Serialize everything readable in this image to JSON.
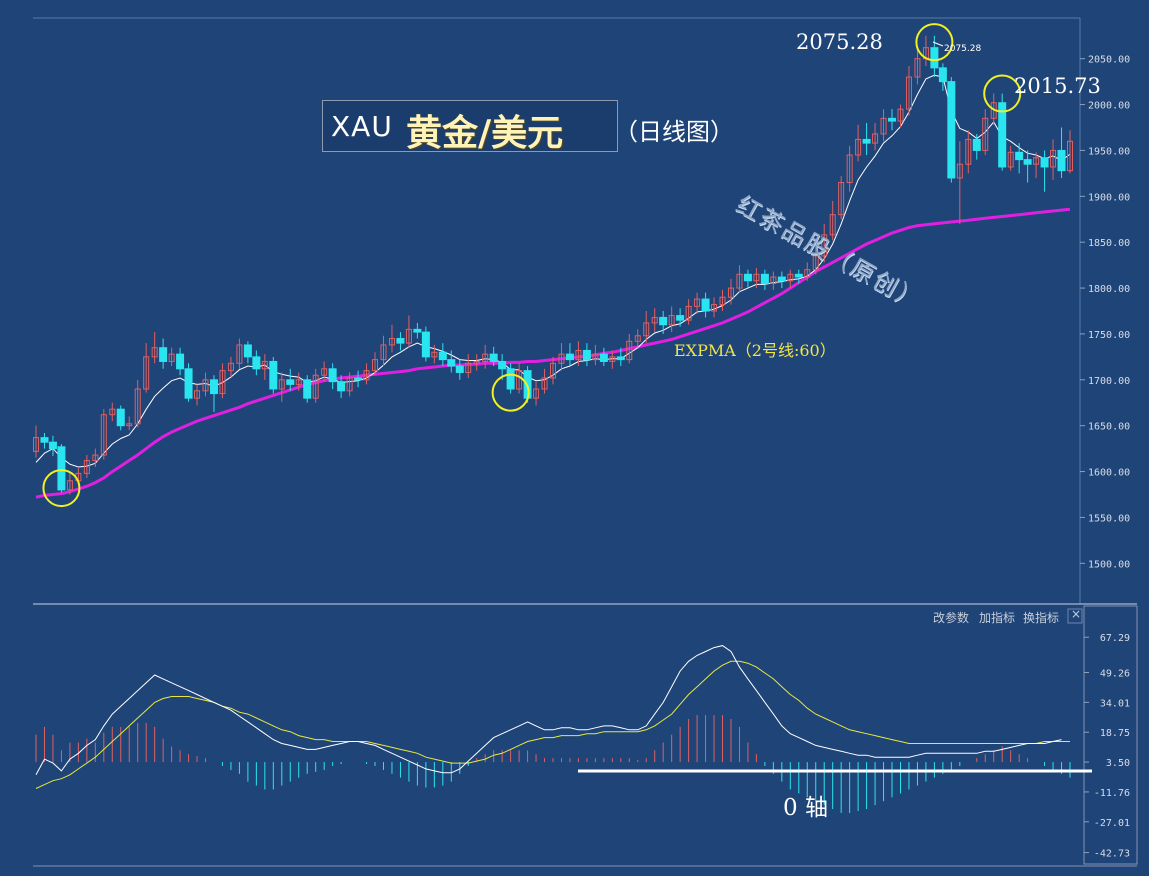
{
  "title": {
    "symbol": "XAU",
    "pair": "黄金/美元",
    "period": "（日线图）"
  },
  "watermark": "红茶品股（原创）",
  "expma_label": "EXPMA（2号线:60）",
  "zero_axis_label": "0 轴",
  "toolbar": {
    "modify_params": "改参数",
    "add_indicator": "加指标",
    "switch_indicator": "换指标",
    "close": "×"
  },
  "annotations": {
    "high_big": "2075.28",
    "high_small": "2075.28",
    "second_high": "2015.73"
  },
  "colors": {
    "background": "#1f4478",
    "up_candle": "#e06060",
    "down_candle": "#29e5f0",
    "expma60": "#e020e0",
    "short_ema": "#ffffff",
    "dea": "#e8e840",
    "circle": "#f2f020"
  },
  "chart_data": {
    "type": "candlestick",
    "y_ticks": [
      "2050.00",
      "2000.00",
      "1950.00",
      "1900.00",
      "1850.00",
      "1800.00",
      "1750.00",
      "1700.00",
      "1650.00",
      "1600.00",
      "1550.00",
      "1500.00"
    ],
    "ylim": [
      1460,
      2090
    ],
    "candles": [
      [
        1622,
        1637,
        1650,
        1615
      ],
      [
        1637,
        1632,
        1642,
        1625
      ],
      [
        1632,
        1625,
        1639,
        1617
      ],
      [
        1627,
        1580,
        1630,
        1577
      ],
      [
        1580,
        1590,
        1600,
        1575
      ],
      [
        1590,
        1598,
        1605,
        1585
      ],
      [
        1598,
        1612,
        1618,
        1593
      ],
      [
        1612,
        1618,
        1625,
        1605
      ],
      [
        1618,
        1662,
        1668,
        1613
      ],
      [
        1662,
        1668,
        1675,
        1655
      ],
      [
        1668,
        1650,
        1672,
        1645
      ],
      [
        1650,
        1652,
        1660,
        1645
      ],
      [
        1652,
        1690,
        1700,
        1648
      ],
      [
        1690,
        1725,
        1740,
        1686
      ],
      [
        1725,
        1735,
        1752,
        1718
      ],
      [
        1735,
        1720,
        1745,
        1712
      ],
      [
        1720,
        1728,
        1735,
        1715
      ],
      [
        1728,
        1712,
        1735,
        1705
      ],
      [
        1712,
        1680,
        1718,
        1676
      ],
      [
        1680,
        1688,
        1695,
        1672
      ],
      [
        1688,
        1700,
        1708,
        1682
      ],
      [
        1700,
        1685,
        1705,
        1665
      ],
      [
        1685,
        1710,
        1718,
        1680
      ],
      [
        1710,
        1718,
        1725,
        1703
      ],
      [
        1718,
        1738,
        1745,
        1712
      ],
      [
        1738,
        1725,
        1742,
        1718
      ],
      [
        1725,
        1712,
        1732,
        1705
      ],
      [
        1712,
        1720,
        1728,
        1700
      ],
      [
        1720,
        1690,
        1725,
        1685
      ],
      [
        1690,
        1700,
        1708,
        1676
      ],
      [
        1700,
        1695,
        1712,
        1688
      ],
      [
        1695,
        1700,
        1708,
        1688
      ],
      [
        1700,
        1680,
        1705,
        1675
      ],
      [
        1680,
        1705,
        1712,
        1675
      ],
      [
        1705,
        1712,
        1720,
        1698
      ],
      [
        1712,
        1698,
        1718,
        1690
      ],
      [
        1698,
        1688,
        1705,
        1680
      ],
      [
        1688,
        1702,
        1708,
        1682
      ],
      [
        1702,
        1700,
        1710,
        1692
      ],
      [
        1700,
        1710,
        1718,
        1695
      ],
      [
        1710,
        1722,
        1730,
        1705
      ],
      [
        1722,
        1738,
        1748,
        1715
      ],
      [
        1738,
        1745,
        1760,
        1730
      ],
      [
        1745,
        1740,
        1752,
        1732
      ],
      [
        1740,
        1755,
        1770,
        1735
      ],
      [
        1755,
        1752,
        1762,
        1745
      ],
      [
        1752,
        1725,
        1758,
        1720
      ],
      [
        1725,
        1730,
        1738,
        1718
      ],
      [
        1730,
        1722,
        1740,
        1715
      ],
      [
        1722,
        1715,
        1732,
        1708
      ],
      [
        1715,
        1708,
        1722,
        1700
      ],
      [
        1708,
        1718,
        1728,
        1702
      ],
      [
        1718,
        1720,
        1728,
        1710
      ],
      [
        1720,
        1728,
        1738,
        1712
      ],
      [
        1728,
        1720,
        1736,
        1715
      ],
      [
        1720,
        1712,
        1728,
        1700
      ],
      [
        1712,
        1690,
        1718,
        1685
      ],
      [
        1690,
        1710,
        1718,
        1685
      ],
      [
        1710,
        1680,
        1715,
        1675
      ],
      [
        1680,
        1690,
        1698,
        1672
      ],
      [
        1690,
        1702,
        1712,
        1685
      ],
      [
        1702,
        1718,
        1725,
        1695
      ],
      [
        1718,
        1728,
        1740,
        1710
      ],
      [
        1728,
        1722,
        1740,
        1715
      ],
      [
        1722,
        1732,
        1742,
        1715
      ],
      [
        1732,
        1722,
        1740,
        1715
      ],
      [
        1722,
        1728,
        1738,
        1716
      ],
      [
        1728,
        1720,
        1735,
        1715
      ],
      [
        1720,
        1725,
        1732,
        1712
      ],
      [
        1725,
        1722,
        1735,
        1715
      ],
      [
        1722,
        1742,
        1750,
        1718
      ],
      [
        1742,
        1748,
        1755,
        1735
      ],
      [
        1748,
        1762,
        1775,
        1740
      ],
      [
        1762,
        1768,
        1778,
        1752
      ],
      [
        1768,
        1760,
        1775,
        1750
      ],
      [
        1760,
        1770,
        1780,
        1752
      ],
      [
        1770,
        1765,
        1778,
        1758
      ],
      [
        1765,
        1780,
        1788,
        1760
      ],
      [
        1780,
        1788,
        1795,
        1772
      ],
      [
        1788,
        1775,
        1795,
        1768
      ],
      [
        1775,
        1782,
        1790,
        1768
      ],
      [
        1782,
        1790,
        1798,
        1775
      ],
      [
        1790,
        1800,
        1810,
        1782
      ],
      [
        1800,
        1815,
        1825,
        1795
      ],
      [
        1815,
        1808,
        1820,
        1800
      ],
      [
        1808,
        1815,
        1822,
        1800
      ],
      [
        1815,
        1805,
        1820,
        1798
      ],
      [
        1805,
        1812,
        1818,
        1798
      ],
      [
        1812,
        1808,
        1818,
        1800
      ],
      [
        1808,
        1815,
        1820,
        1800
      ],
      [
        1815,
        1812,
        1820,
        1805
      ],
      [
        1812,
        1820,
        1828,
        1808
      ],
      [
        1820,
        1835,
        1850,
        1815
      ],
      [
        1835,
        1858,
        1870,
        1828
      ],
      [
        1858,
        1880,
        1895,
        1852
      ],
      [
        1880,
        1915,
        1922,
        1875
      ],
      [
        1915,
        1945,
        1955,
        1905
      ],
      [
        1945,
        1962,
        1978,
        1938
      ],
      [
        1962,
        1958,
        1980,
        1945
      ],
      [
        1958,
        1968,
        1980,
        1950
      ],
      [
        1968,
        1985,
        1995,
        1960
      ],
      [
        1985,
        1982,
        1995,
        1972
      ],
      [
        1982,
        1995,
        2000,
        1975
      ],
      [
        1995,
        2030,
        2042,
        1988
      ],
      [
        2030,
        2050,
        2062,
        2022
      ],
      [
        2050,
        2062,
        2075,
        2042
      ],
      [
        2062,
        2040,
        2075,
        2030
      ],
      [
        2040,
        2025,
        2045,
        2015
      ],
      [
        2025,
        1920,
        2030,
        1915
      ],
      [
        1920,
        1935,
        1960,
        1870
      ],
      [
        1935,
        1962,
        1972,
        1925
      ],
      [
        1962,
        1950,
        1968,
        1940
      ],
      [
        1950,
        1985,
        1995,
        1945
      ],
      [
        1985,
        2002,
        2012,
        1978
      ],
      [
        2002,
        1932,
        2012,
        1928
      ],
      [
        1932,
        1948,
        1955,
        1928
      ],
      [
        1948,
        1940,
        1958,
        1925
      ],
      [
        1940,
        1935,
        1950,
        1915
      ],
      [
        1935,
        1942,
        1948,
        1920
      ],
      [
        1942,
        1932,
        1950,
        1905
      ],
      [
        1932,
        1950,
        1962,
        1918
      ],
      [
        1950,
        1928,
        1975,
        1920
      ],
      [
        1928,
        1960,
        1972,
        1925
      ]
    ],
    "short_ema": [
      1610,
      1620,
      1625,
      1615,
      1608,
      1605,
      1606,
      1609,
      1620,
      1630,
      1636,
      1640,
      1652,
      1668,
      1682,
      1691,
      1699,
      1702,
      1697,
      1695,
      1696,
      1693,
      1697,
      1703,
      1711,
      1715,
      1714,
      1716,
      1709,
      1706,
      1704,
      1703,
      1697,
      1699,
      1703,
      1701,
      1697,
      1698,
      1699,
      1702,
      1708,
      1716,
      1725,
      1730,
      1736,
      1740,
      1736,
      1734,
      1731,
      1727,
      1722,
      1721,
      1721,
      1723,
      1722,
      1719,
      1711,
      1711,
      1703,
      1699,
      1700,
      1705,
      1712,
      1715,
      1720,
      1721,
      1723,
      1722,
      1723,
      1723,
      1729,
      1735,
      1744,
      1751,
      1754,
      1759,
      1761,
      1767,
      1774,
      1775,
      1777,
      1781,
      1787,
      1796,
      1800,
      1804,
      1804,
      1806,
      1807,
      1809,
      1810,
      1813,
      1820,
      1832,
      1848,
      1870,
      1895,
      1918,
      1932,
      1944,
      1958,
      1966,
      1976,
      1992,
      2011,
      2028,
      2032,
      2030,
      1993,
      1974,
      1970,
      1963,
      1970,
      1981,
      1965,
      1960,
      1953,
      1947,
      1945,
      1941,
      1944,
      1939,
      1946
    ],
    "expma60": [
      1572,
      1574,
      1575,
      1576,
      1578,
      1581,
      1584,
      1588,
      1593,
      1600,
      1606,
      1612,
      1618,
      1625,
      1632,
      1638,
      1643,
      1647,
      1651,
      1655,
      1658,
      1661,
      1664,
      1667,
      1670,
      1674,
      1677,
      1680,
      1683,
      1686,
      1689,
      1692,
      1695,
      1697,
      1699,
      1701,
      1702,
      1703,
      1704,
      1705,
      1706,
      1707,
      1708,
      1709,
      1710,
      1712,
      1713,
      1714,
      1715,
      1716,
      1716,
      1717,
      1717,
      1718,
      1718,
      1718,
      1719,
      1719,
      1720,
      1720,
      1721,
      1722,
      1723,
      1724,
      1725,
      1726,
      1727,
      1729,
      1730,
      1732,
      1734,
      1736,
      1738,
      1740,
      1742,
      1744,
      1747,
      1750,
      1753,
      1756,
      1759,
      1762,
      1766,
      1770,
      1774,
      1779,
      1784,
      1789,
      1794,
      1800,
      1806,
      1812,
      1818,
      1823,
      1828,
      1833,
      1838,
      1843,
      1848,
      1852,
      1856,
      1860,
      1863,
      1866,
      1868,
      1869,
      1870,
      1871,
      1872,
      1873,
      1874,
      1875,
      1876,
      1877,
      1878,
      1879,
      1880,
      1881,
      1882,
      1883,
      1884,
      1885,
      1886
    ],
    "macd": {
      "y_ticks": [
        "67.29",
        "49.26",
        "34.01",
        "18.75",
        "3.50",
        "-11.76",
        "-27.01",
        "-42.73"
      ],
      "ylim": [
        -45,
        72
      ],
      "dif": [
        -3,
        5,
        3,
        -1,
        5,
        8,
        12,
        15,
        22,
        28,
        32,
        36,
        40,
        44,
        48,
        46,
        44,
        42,
        40,
        38,
        36,
        34,
        32,
        30,
        27,
        24,
        21,
        18,
        15,
        13,
        12,
        11,
        10,
        10,
        11,
        12,
        13,
        14,
        14,
        13,
        12,
        10,
        8,
        6,
        4,
        2,
        0,
        -1,
        -2,
        -2,
        0,
        4,
        8,
        12,
        16,
        18,
        20,
        22,
        24,
        22,
        20,
        20,
        21,
        21,
        20,
        20,
        21,
        22,
        22,
        21,
        20,
        20,
        22,
        28,
        34,
        42,
        50,
        55,
        58,
        60,
        62,
        63,
        60,
        52,
        46,
        40,
        34,
        28,
        22,
        18,
        16,
        14,
        12,
        11,
        10,
        9,
        8,
        7,
        7,
        6,
        6,
        6,
        6,
        6,
        7,
        8,
        8,
        8,
        8,
        8,
        8,
        8,
        9,
        9,
        10,
        11,
        12,
        13,
        13,
        13,
        14,
        15
      ],
      "dea": [
        -10,
        -8,
        -6,
        -5,
        -3,
        0,
        3,
        6,
        10,
        14,
        18,
        22,
        26,
        30,
        34,
        36,
        37,
        37,
        37,
        36,
        35,
        34,
        32,
        31,
        29,
        28,
        26,
        24,
        22,
        20,
        19,
        17,
        16,
        15,
        15,
        14,
        14,
        14,
        14,
        14,
        13,
        12,
        11,
        10,
        9,
        8,
        6,
        5,
        4,
        3,
        3,
        3,
        4,
        5,
        7,
        8,
        10,
        12,
        14,
        15,
        16,
        16,
        17,
        17,
        17,
        18,
        18,
        19,
        19,
        19,
        19,
        19,
        20,
        22,
        25,
        28,
        33,
        38,
        42,
        46,
        50,
        53,
        55,
        55,
        54,
        52,
        49,
        46,
        42,
        38,
        35,
        31,
        28,
        26,
        24,
        22,
        20,
        19,
        18,
        17,
        16,
        15,
        14,
        13,
        13,
        13,
        13,
        13,
        13,
        13,
        13,
        13,
        13,
        13,
        13,
        13,
        13,
        13,
        13,
        14,
        14,
        14,
        14
      ],
      "hist": [
        14,
        18,
        14,
        6,
        10,
        10,
        12,
        10,
        15,
        18,
        18,
        18,
        20,
        20,
        18,
        12,
        8,
        6,
        4,
        3,
        2,
        0,
        -2,
        -4,
        -6,
        -10,
        -12,
        -14,
        -14,
        -12,
        -10,
        -8,
        -6,
        -5,
        -4,
        -2,
        -1,
        0,
        0,
        -1,
        -2,
        -4,
        -6,
        -8,
        -10,
        -12,
        -13,
        -13,
        -12,
        -10,
        -6,
        -2,
        2,
        4,
        6,
        6,
        6,
        6,
        6,
        4,
        2,
        2,
        2,
        2,
        2,
        2,
        2,
        2,
        2,
        2,
        2,
        1,
        2,
        6,
        10,
        14,
        18,
        22,
        24,
        24,
        24,
        24,
        22,
        18,
        10,
        4,
        -2,
        -6,
        -10,
        -14,
        -16,
        -18,
        -20,
        -22,
        -24,
        -26,
        -26,
        -25,
        -24,
        -22,
        -20,
        -18,
        -16,
        -14,
        -12,
        -10,
        -8,
        -6,
        -4,
        -2,
        0,
        2,
        4,
        6,
        8,
        6,
        4,
        2,
        0,
        -2,
        -4,
        -6,
        -8
      ]
    }
  }
}
